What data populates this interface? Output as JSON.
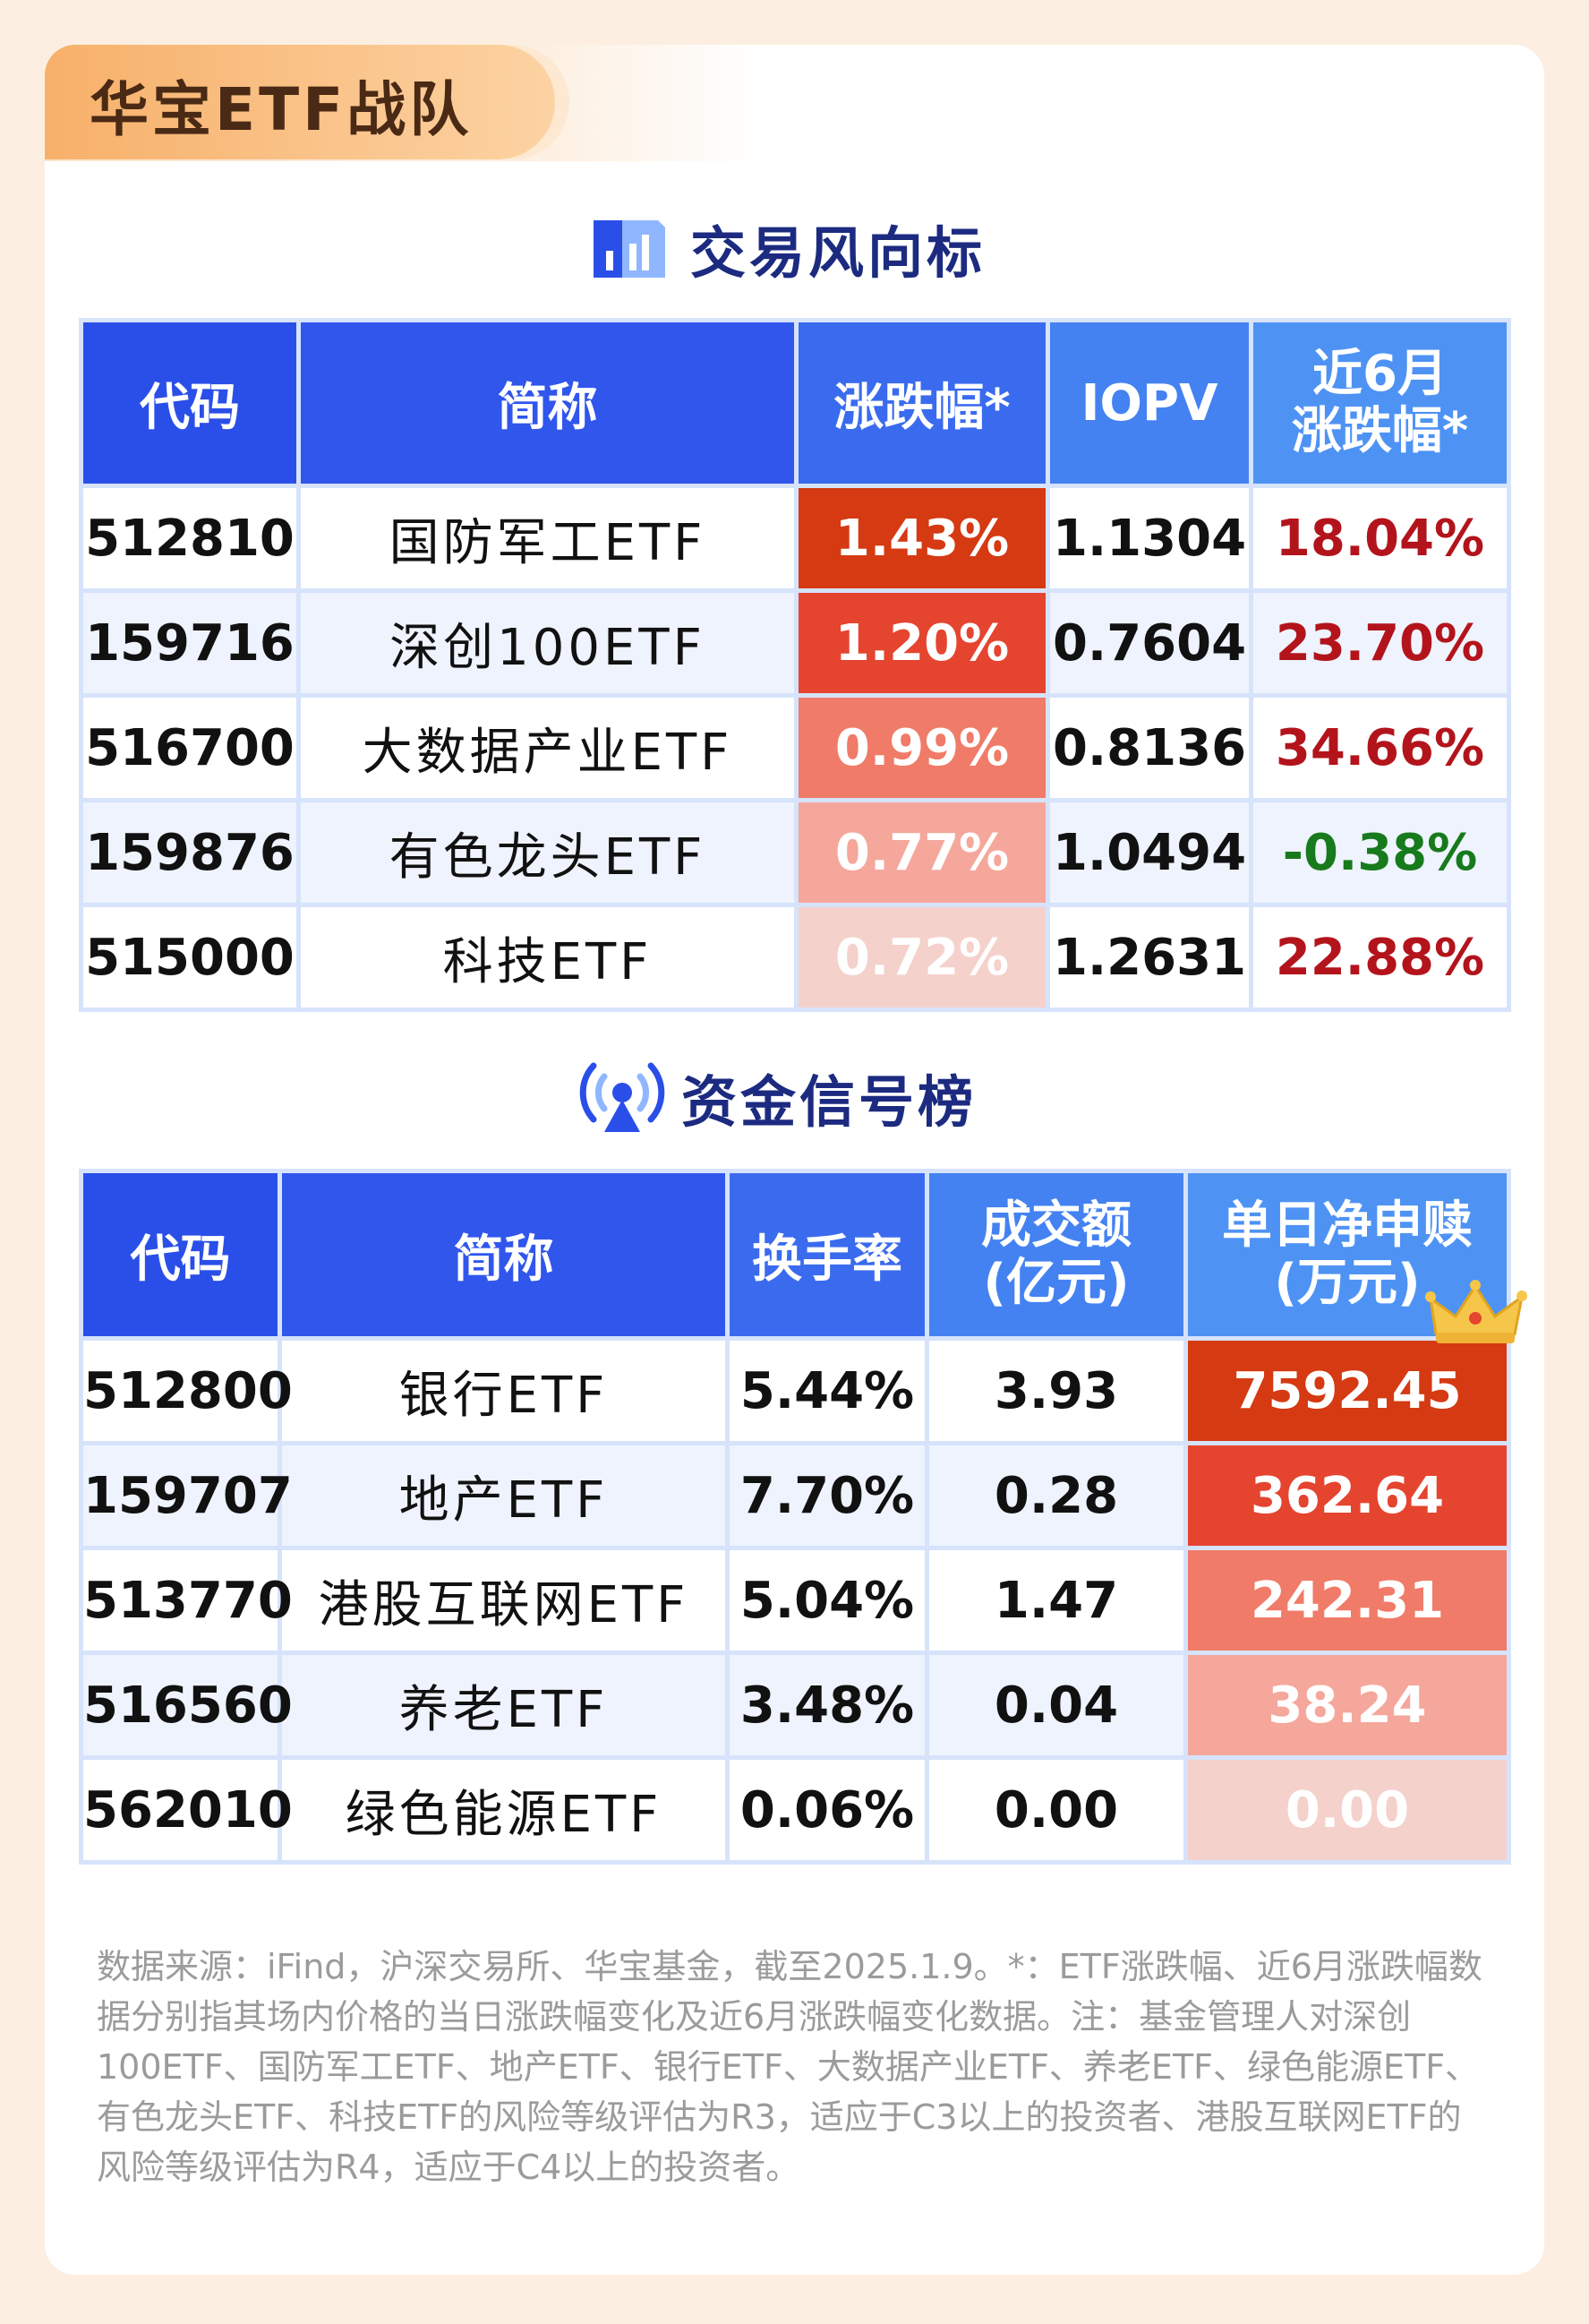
{
  "header": {
    "tag": "华宝ETF战队"
  },
  "section1": {
    "title": "交易风向标",
    "columns": [
      "代码",
      "简称",
      "涨跌幅*",
      "IOPV",
      "近6月\n涨跌幅*"
    ],
    "rows": [
      {
        "code": "512810",
        "name": "国防军工ETF",
        "change": "1.43%",
        "iopv": "1.1304",
        "change6m": "18.04%"
      },
      {
        "code": "159716",
        "name": "深创100ETF",
        "change": "1.20%",
        "iopv": "0.7604",
        "change6m": "23.70%"
      },
      {
        "code": "516700",
        "name": "大数据产业ETF",
        "change": "0.99%",
        "iopv": "0.8136",
        "change6m": "34.66%"
      },
      {
        "code": "159876",
        "name": "有色龙头ETF",
        "change": "0.77%",
        "iopv": "1.0494",
        "change6m": "-0.38%"
      },
      {
        "code": "515000",
        "name": "科技ETF",
        "change": "0.72%",
        "iopv": "1.2631",
        "change6m": "22.88%"
      }
    ]
  },
  "section2": {
    "title": "资金信号榜",
    "columns": [
      "代码",
      "简称",
      "换手率",
      "成交额\n(亿元)",
      "单日净申赎\n(万元)"
    ],
    "rows": [
      {
        "code": "512800",
        "name": "银行ETF",
        "turnover": "5.44%",
        "volume": "3.93",
        "net": "7592.45"
      },
      {
        "code": "159707",
        "name": "地产ETF",
        "turnover": "7.70%",
        "volume": "0.28",
        "net": "362.64"
      },
      {
        "code": "513770",
        "name": "港股互联网ETF",
        "turnover": "5.04%",
        "volume": "1.47",
        "net": "242.31"
      },
      {
        "code": "516560",
        "name": "养老ETF",
        "turnover": "3.48%",
        "volume": "0.04",
        "net": "38.24"
      },
      {
        "code": "562010",
        "name": "绿色能源ETF",
        "turnover": "0.06%",
        "volume": "0.00",
        "net": "0.00"
      }
    ]
  },
  "footnote": "数据来源：iFind，沪深交易所、华宝基金，截至2025.1.9。*：ETF涨跌幅、近6月涨跌幅数据分别指其场内价格的当日涨跌幅变化及近6月涨跌幅变化数据。注：基金管理人对深创100ETF、国防军工ETF、地产ETF、银行ETF、大数据产业ETF、养老ETF、绿色能源ETF、有色龙头ETF、科技ETF的风险等级评估为R3，适应于C3以上的投资者、港股互联网ETF的风险等级评估为R4，适应于C4以上的投资者。",
  "colors": {
    "header_blue_dark": "#2a4fe8",
    "header_blue_light": "#4e93f4",
    "heat_1": "#d53a12",
    "heat_5": "#f5d1cc",
    "positive": "#b3141c",
    "negative": "#177a1c"
  },
  "icons": [
    "bar-chart-icon",
    "signal-broadcast-icon",
    "crown-icon"
  ]
}
